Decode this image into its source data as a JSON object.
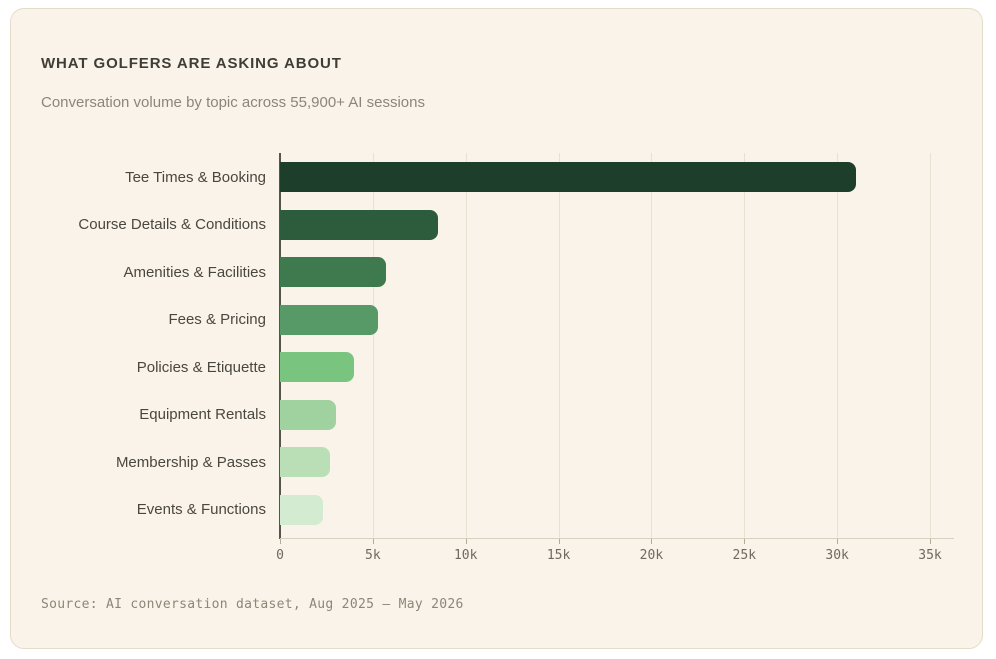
{
  "card": {
    "title": "WHAT GOLFERS ARE ASKING ABOUT",
    "subtitle": "Conversation volume by topic across 55,900+ AI sessions",
    "source": "Source: AI conversation dataset, Aug 2025 – May 2026"
  },
  "colors": {
    "page_bg": "#ffffff",
    "card_bg": "#faf3e9",
    "card_border": "#e5dbc9",
    "title_text": "#3e3d38",
    "subtitle_text": "#8b857a",
    "label_text": "#494740",
    "tick_text": "#6e6a5f",
    "tick_mark": "#b3ab9a",
    "source_text": "#8d8678",
    "grid_line": "#e8e0d0",
    "axis_line": "#54564e",
    "baseline": "#d9d1c0"
  },
  "chart_data": {
    "type": "bar",
    "orientation": "horizontal",
    "title": "WHAT GOLFERS ARE ASKING ABOUT",
    "subtitle": "Conversation volume by topic across 55,900+ AI sessions",
    "categories": [
      "Tee Times & Booking",
      "Course Details & Conditions",
      "Amenities & Facilities",
      "Fees & Pricing",
      "Policies & Etiquette",
      "Equipment Rentals",
      "Membership & Passes",
      "Events & Functions"
    ],
    "values": [
      31000,
      8500,
      5700,
      5300,
      4000,
      3000,
      2700,
      2300
    ],
    "bar_colors": [
      "#1d3e2a",
      "#2d5c3c",
      "#3f7a4f",
      "#589a67",
      "#79c47e",
      "#9fd29e",
      "#badfb6",
      "#d3ebd0"
    ],
    "xlabel": "",
    "ylabel": "",
    "xlim": [
      0,
      35000
    ],
    "x_ticks": [
      {
        "value": 0,
        "label": "0"
      },
      {
        "value": 5000,
        "label": "5k"
      },
      {
        "value": 10000,
        "label": "10k"
      },
      {
        "value": 15000,
        "label": "15k"
      },
      {
        "value": 20000,
        "label": "20k"
      },
      {
        "value": 25000,
        "label": "25k"
      },
      {
        "value": 30000,
        "label": "30k"
      },
      {
        "value": 35000,
        "label": "35k"
      }
    ],
    "grid": "vertical-on",
    "legend": "none"
  }
}
